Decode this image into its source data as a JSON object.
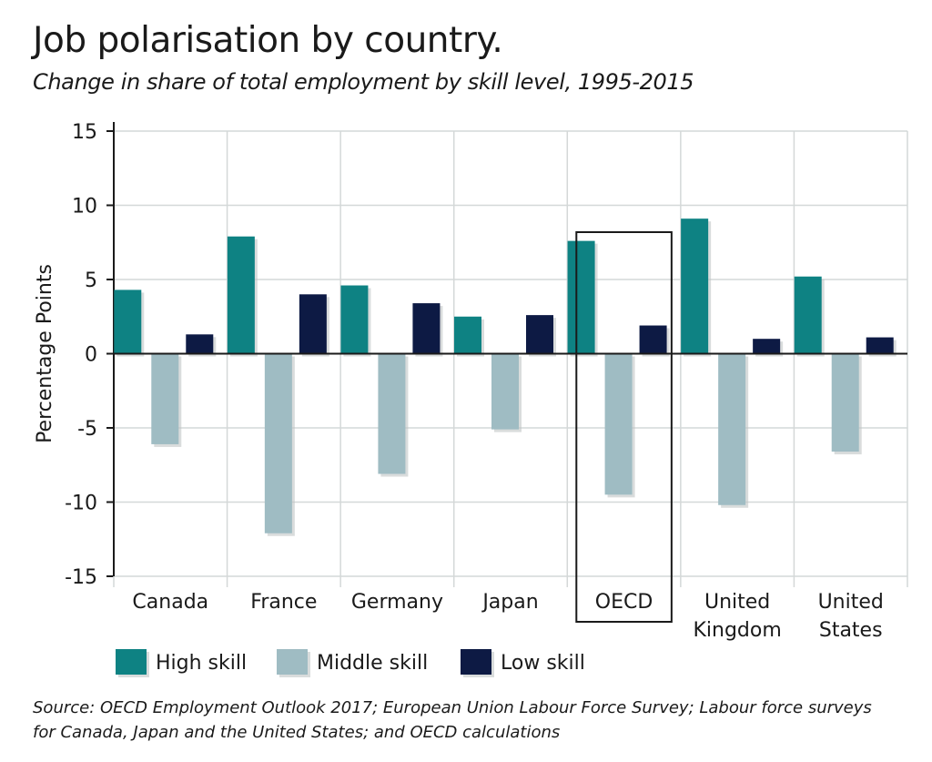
{
  "chart_data": {
    "type": "bar",
    "title": "Job polarisation by country.",
    "subtitle": "Change in share of total employment by skill level, 1995-2015",
    "ylabel": "Percentage Points",
    "xlabel": "",
    "ylim": [
      -15,
      15
    ],
    "yticks": [
      15,
      10,
      5,
      0,
      -5,
      -10,
      -15
    ],
    "y_tick_labels": [
      "15",
      "10",
      "5",
      "0",
      "-5",
      "-10",
      "-15"
    ],
    "grid": true,
    "legend_position": "bottom-left",
    "categories": [
      [
        "Canada"
      ],
      [
        "France"
      ],
      [
        "Germany"
      ],
      [
        "Japan"
      ],
      [
        "OECD"
      ],
      [
        "United",
        "Kingdom"
      ],
      [
        "United",
        "States"
      ]
    ],
    "highlighted_category": "OECD",
    "series": [
      {
        "name": "High skill",
        "color": "#0e8283",
        "values": [
          4.3,
          7.9,
          4.6,
          2.5,
          7.6,
          9.1,
          5.2
        ]
      },
      {
        "name": "Middle skill",
        "color": "#9fbcc3",
        "values": [
          -6.1,
          -12.1,
          -8.1,
          -5.1,
          -9.5,
          -10.2,
          -6.6
        ]
      },
      {
        "name": "Low skill",
        "color": "#0d1a44",
        "values": [
          1.3,
          4.0,
          3.4,
          2.6,
          1.9,
          1.0,
          1.1
        ]
      }
    ],
    "source": "Source: OECD Employment Outlook 2017; European Union Labour Force Survey; Labour force surveys for Canada, Japan and the United States; and OECD calculations"
  }
}
